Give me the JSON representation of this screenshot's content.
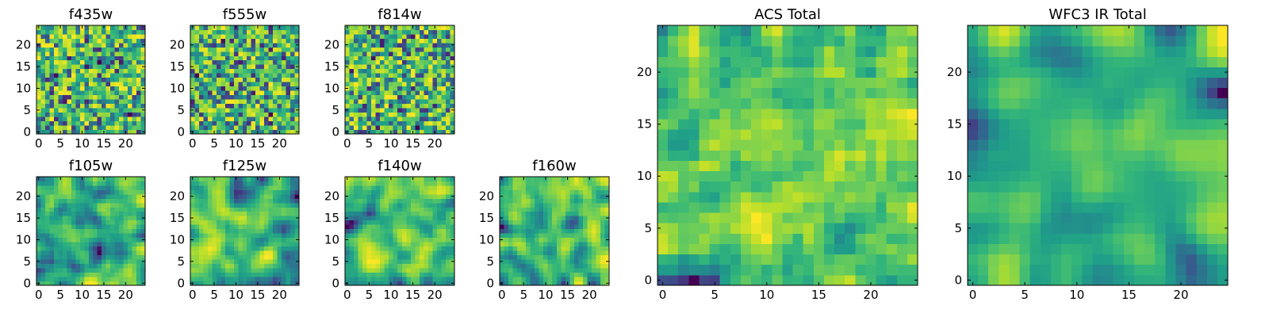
{
  "chart_data": [
    {
      "type": "heatmap",
      "title": "f435w",
      "xticks": [
        "0",
        "5",
        "10",
        "15",
        "20"
      ],
      "yticks": [
        "0",
        "5",
        "10",
        "15",
        "20"
      ],
      "xlim": [
        -0.5,
        24.5
      ],
      "ylim": [
        -0.5,
        24.5
      ],
      "grid_size": 25,
      "seed": 11,
      "smooth": 0,
      "colormap": "viridis"
    },
    {
      "type": "heatmap",
      "title": "f555w",
      "xticks": [
        "0",
        "5",
        "10",
        "15",
        "20"
      ],
      "yticks": [
        "0",
        "5",
        "10",
        "15",
        "20"
      ],
      "xlim": [
        -0.5,
        24.5
      ],
      "ylim": [
        -0.5,
        24.5
      ],
      "grid_size": 25,
      "seed": 23,
      "smooth": 0,
      "colormap": "viridis"
    },
    {
      "type": "heatmap",
      "title": "f814w",
      "xticks": [
        "0",
        "5",
        "10",
        "15",
        "20"
      ],
      "yticks": [
        "0",
        "5",
        "10",
        "15",
        "20"
      ],
      "xlim": [
        -0.5,
        24.5
      ],
      "ylim": [
        -0.5,
        24.5
      ],
      "grid_size": 25,
      "seed": 37,
      "smooth": 0,
      "colormap": "viridis"
    },
    {
      "type": "heatmap",
      "title": "f105w",
      "xticks": [
        "0",
        "5",
        "10",
        "15",
        "20"
      ],
      "yticks": [
        "0",
        "5",
        "10",
        "15",
        "20"
      ],
      "xlim": [
        -0.5,
        24.5
      ],
      "ylim": [
        -0.5,
        24.5
      ],
      "grid_size": 25,
      "seed": 41,
      "smooth": 2,
      "colormap": "viridis"
    },
    {
      "type": "heatmap",
      "title": "f125w",
      "xticks": [
        "0",
        "5",
        "10",
        "15",
        "20"
      ],
      "yticks": [
        "0",
        "5",
        "10",
        "15",
        "20"
      ],
      "xlim": [
        -0.5,
        24.5
      ],
      "ylim": [
        -0.5,
        24.5
      ],
      "grid_size": 25,
      "seed": 53,
      "smooth": 2,
      "colormap": "viridis"
    },
    {
      "type": "heatmap",
      "title": "f140w",
      "xticks": [
        "0",
        "5",
        "10",
        "15",
        "20"
      ],
      "yticks": [
        "0",
        "5",
        "10",
        "15",
        "20"
      ],
      "xlim": [
        -0.5,
        24.5
      ],
      "ylim": [
        -0.5,
        24.5
      ],
      "grid_size": 25,
      "seed": 67,
      "smooth": 2,
      "colormap": "viridis"
    },
    {
      "type": "heatmap",
      "title": "f160w",
      "xticks": [
        "0",
        "5",
        "10",
        "15",
        "20"
      ],
      "yticks": [
        "0",
        "5",
        "10",
        "15",
        "20"
      ],
      "xlim": [
        -0.5,
        24.5
      ],
      "ylim": [
        -0.5,
        24.5
      ],
      "grid_size": 25,
      "seed": 79,
      "smooth": 2,
      "colormap": "viridis"
    },
    {
      "type": "heatmap",
      "title": "ACS Total",
      "xticks": [
        "0",
        "5",
        "10",
        "15",
        "20"
      ],
      "yticks": [
        "0",
        "5",
        "10",
        "15",
        "20"
      ],
      "xlim": [
        -0.5,
        24.5
      ],
      "ylim": [
        -0.5,
        24.5
      ],
      "grid_size": 25,
      "seed": 97,
      "smooth": 1,
      "colormap": "viridis"
    },
    {
      "type": "heatmap",
      "title": "WFC3 IR Total",
      "xticks": [
        "0",
        "5",
        "10",
        "15",
        "20"
      ],
      "yticks": [
        "0",
        "5",
        "10",
        "15",
        "20"
      ],
      "xlim": [
        -0.5,
        24.5
      ],
      "ylim": [
        -0.5,
        24.5
      ],
      "grid_size": 25,
      "seed": 113,
      "smooth": 3,
      "colormap": "viridis"
    }
  ]
}
